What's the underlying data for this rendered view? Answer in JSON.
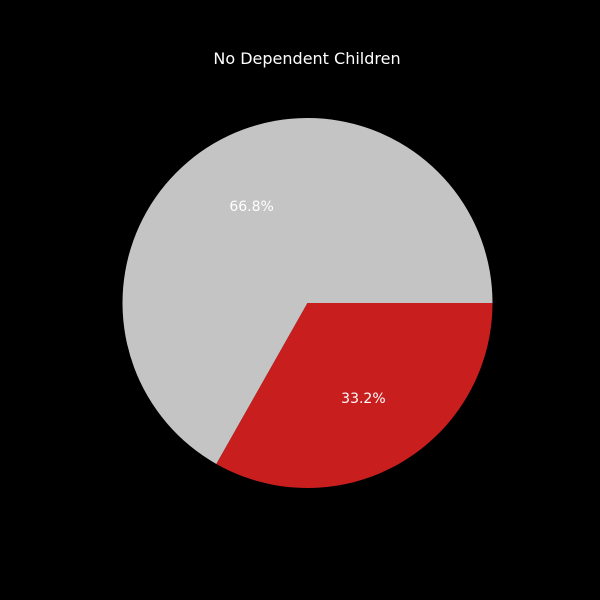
{
  "chart_data": {
    "type": "pie",
    "title": "No Dependent Children",
    "slices": [
      {
        "value": 66.8,
        "label": "66.8%",
        "color": "#c4c4c4"
      },
      {
        "value": 33.2,
        "label": "33.2%",
        "color": "#c81e1e"
      }
    ],
    "start_angle_deg": 0,
    "direction": "counterclockwise",
    "legend": "none",
    "background": "#000000"
  }
}
